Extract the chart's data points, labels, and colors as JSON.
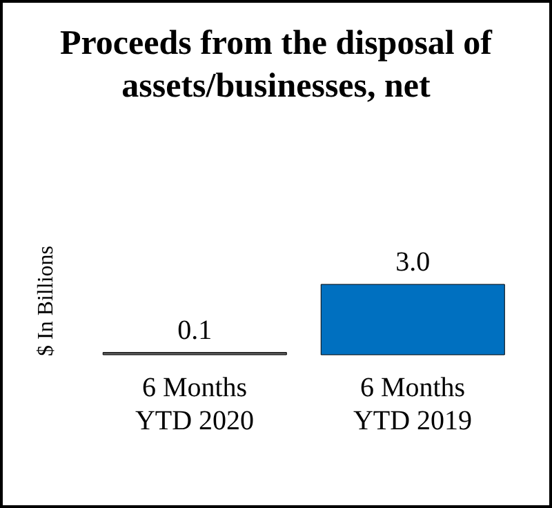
{
  "chart_data": {
    "type": "bar",
    "title": "Proceeds from the disposal of assets/businesses, net",
    "ylabel": "$ In Billions",
    "categories": [
      "6 Months YTD 2020",
      "6 Months YTD 2019"
    ],
    "values": [
      0.1,
      3.0
    ],
    "colors": [
      "#595959",
      "#0070c0"
    ],
    "value_labels": [
      "0.1",
      "3.0"
    ]
  }
}
